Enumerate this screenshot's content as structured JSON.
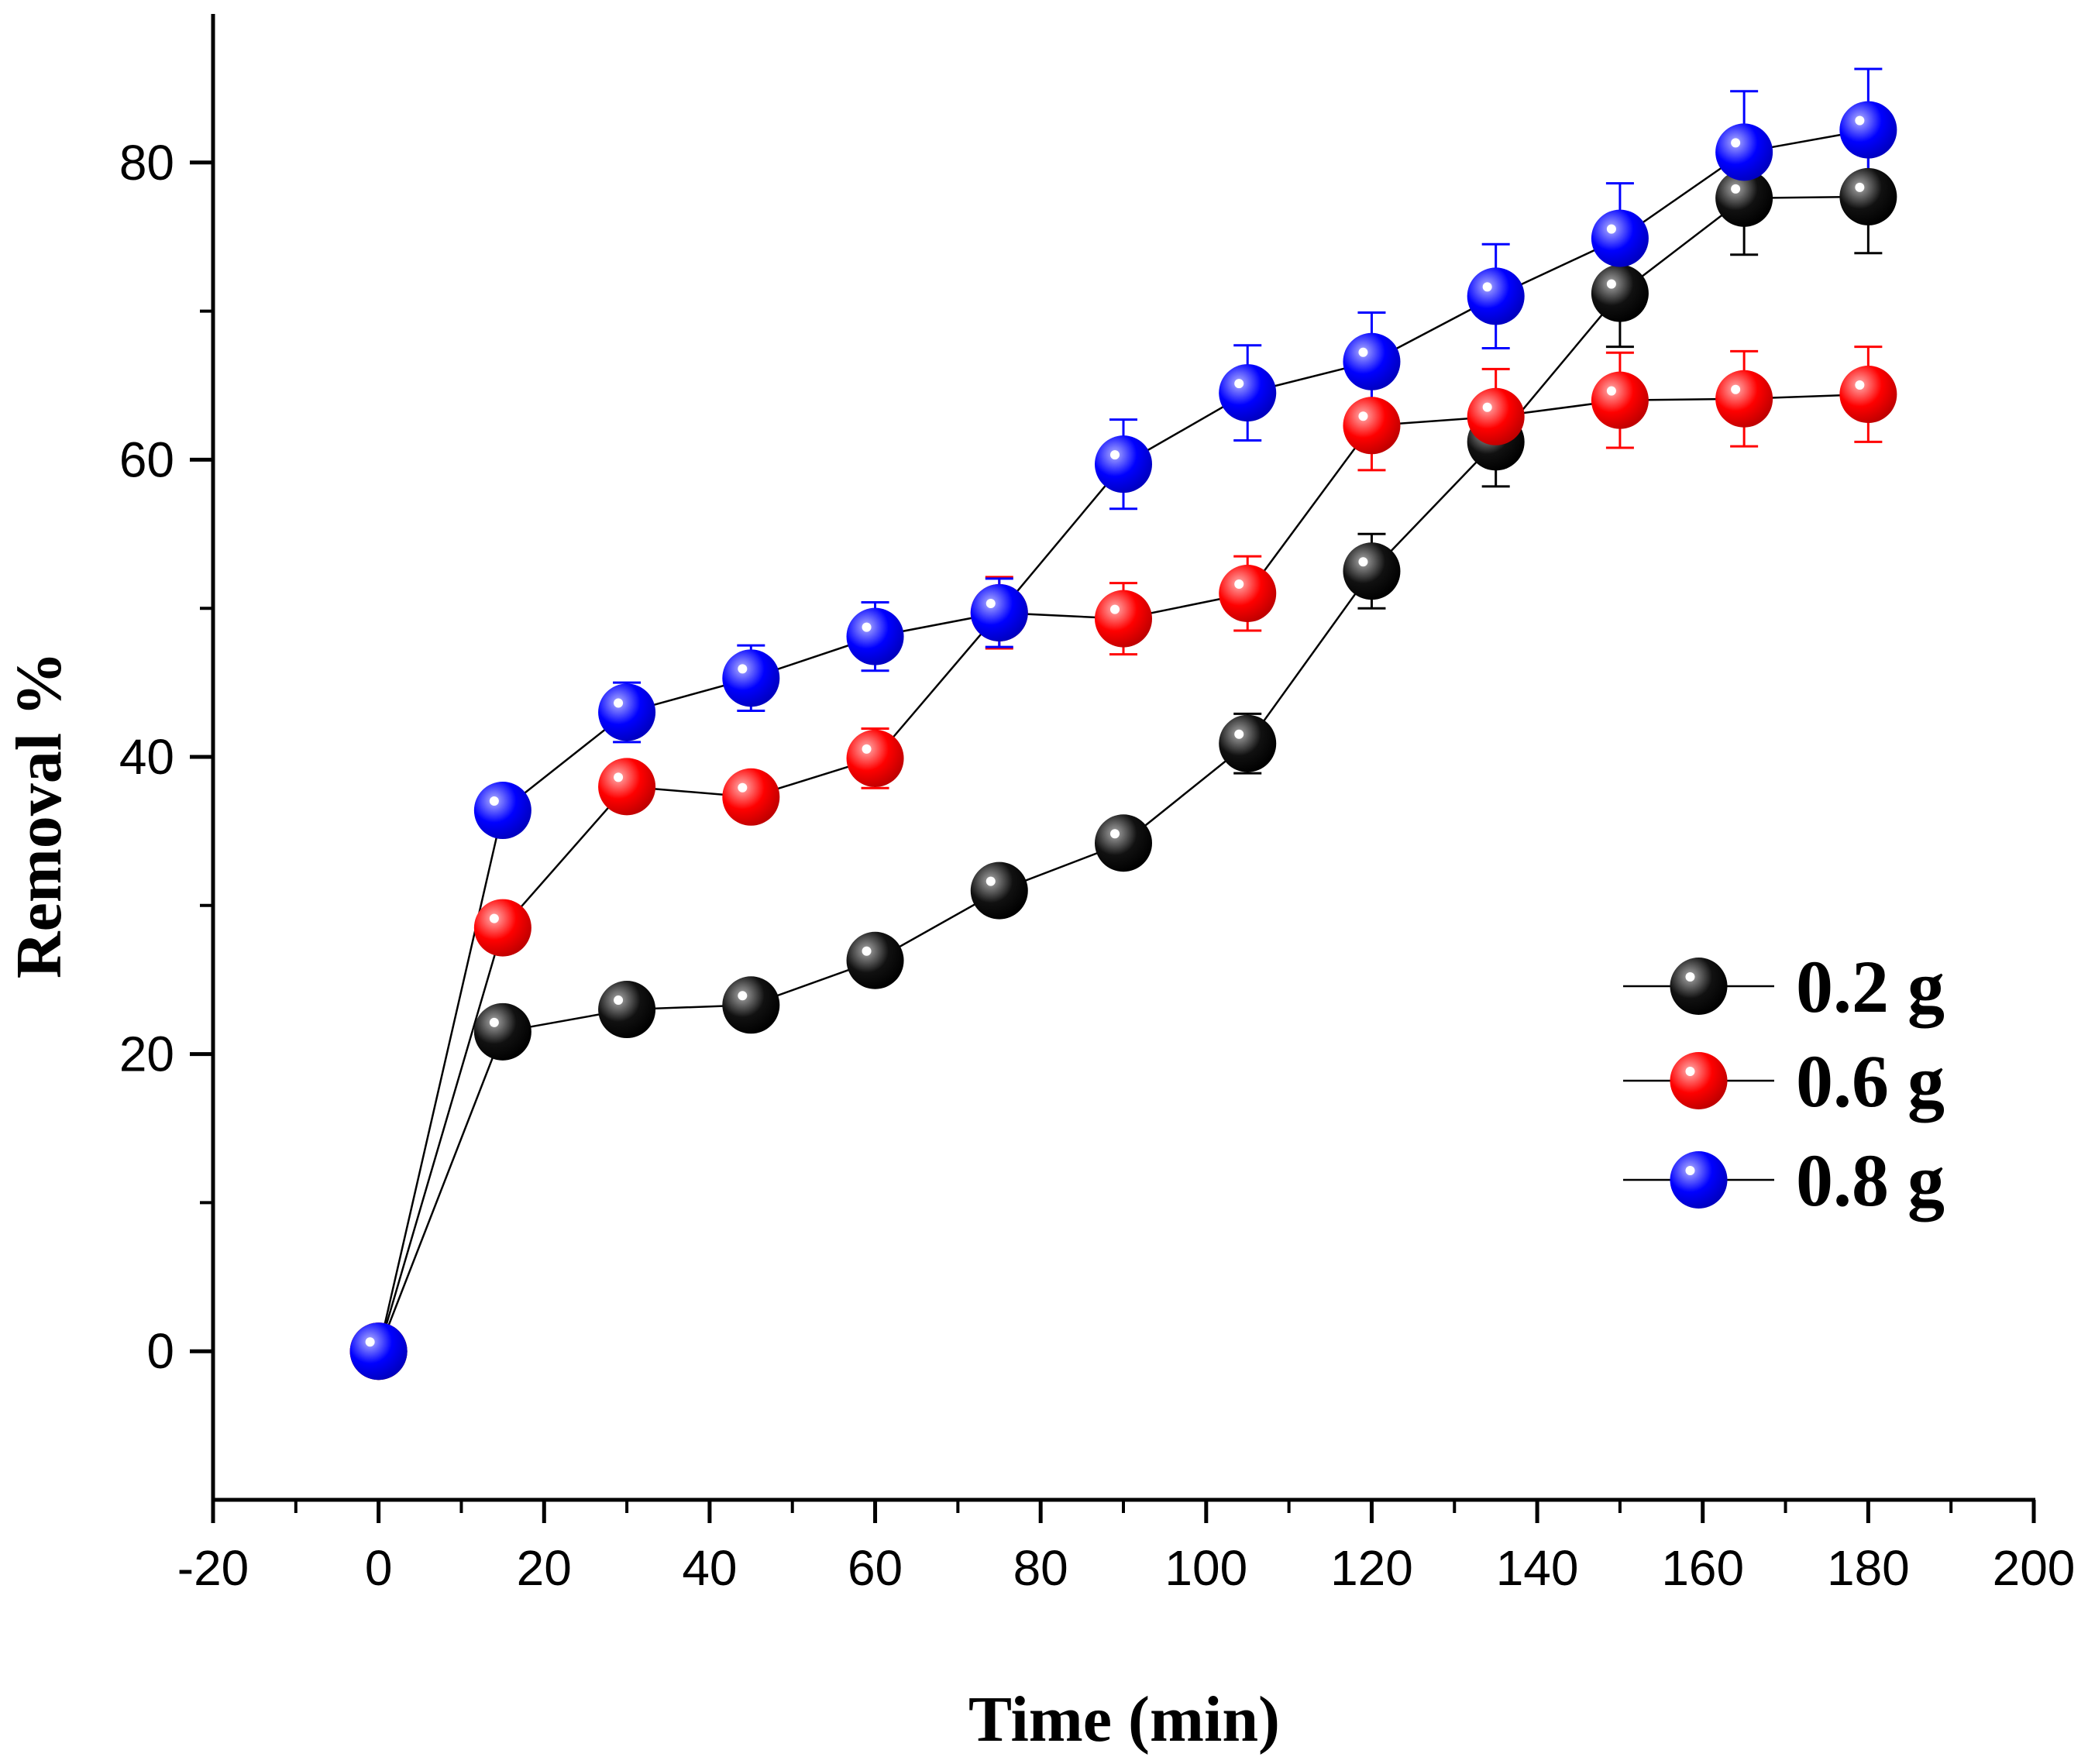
{
  "chart_data": {
    "type": "scatter",
    "title": "",
    "xlabel": "Time (min)",
    "ylabel": "Removal %",
    "xlim": [
      -20,
      200
    ],
    "ylim": [
      -10,
      90
    ],
    "x_ticks": [
      "-20",
      "0",
      "20",
      "40",
      "60",
      "80",
      "100",
      "120",
      "140",
      "160",
      "180",
      "200"
    ],
    "x_tick_values": [
      -20,
      0,
      20,
      40,
      60,
      80,
      100,
      120,
      140,
      160,
      180,
      200
    ],
    "y_ticks": [
      "0",
      "20",
      "40",
      "60",
      "80"
    ],
    "y_tick_values": [
      0,
      20,
      40,
      60,
      80
    ],
    "legend_position": "middle-right",
    "x": [
      0,
      15,
      30,
      45,
      60,
      75,
      90,
      105,
      120,
      135,
      150,
      165,
      180
    ],
    "series": [
      {
        "name": "0.2 g",
        "color": "#000000",
        "values": [
          0,
          21.5,
          23.0,
          23.3,
          26.3,
          31.0,
          34.2,
          40.9,
          52.5,
          61.2,
          71.2,
          77.6,
          77.7
        ],
        "errors": [
          0,
          1.0,
          0.8,
          0.8,
          0.8,
          0.8,
          0.8,
          2.0,
          2.5,
          3.0,
          3.6,
          3.8,
          3.8
        ]
      },
      {
        "name": "0.6 g",
        "color": "#ff0000",
        "values": [
          0,
          28.5,
          38.0,
          37.3,
          39.9,
          49.7,
          49.3,
          51.0,
          62.3,
          62.9,
          64.0,
          64.1,
          64.4
        ],
        "errors": [
          0,
          0,
          1.5,
          1.2,
          2.0,
          2.4,
          2.4,
          2.5,
          3.0,
          3.2,
          3.2,
          3.2,
          3.2
        ]
      },
      {
        "name": "0.8 g",
        "color": "#0000ff",
        "values": [
          0,
          36.4,
          43.0,
          45.3,
          48.1,
          49.7,
          59.7,
          64.5,
          66.6,
          71.0,
          74.9,
          80.7,
          82.2
        ],
        "errors": [
          0,
          0,
          2.0,
          2.2,
          2.3,
          2.3,
          3.0,
          3.2,
          3.3,
          3.5,
          3.7,
          4.1,
          4.1
        ]
      }
    ]
  }
}
